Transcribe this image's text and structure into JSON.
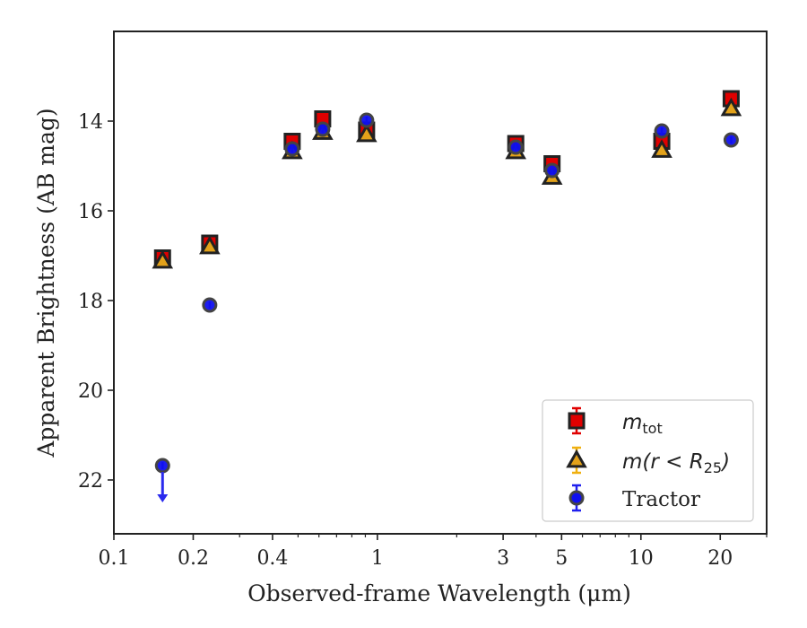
{
  "chart_data": {
    "type": "scatter",
    "title": "",
    "xlabel": "Observed-frame Wavelength (μm)",
    "ylabel": "Apparent Brightness (AB mag)",
    "x_scale": "log",
    "xlim": [
      0.1,
      30
    ],
    "ylim": [
      23.2,
      12.0
    ],
    "y_inverted": true,
    "grid": false,
    "legend_position": "lower-right",
    "x_ticks": [
      {
        "value": 0.1,
        "label": "0.1"
      },
      {
        "value": 0.2,
        "label": "0.2"
      },
      {
        "value": 0.4,
        "label": "0.4"
      },
      {
        "value": 1,
        "label": "1"
      },
      {
        "value": 3,
        "label": "3"
      },
      {
        "value": 5,
        "label": "5"
      },
      {
        "value": 10,
        "label": "10"
      },
      {
        "value": 20,
        "label": "20"
      }
    ],
    "y_ticks": [
      {
        "value": 14,
        "label": "14"
      },
      {
        "value": 16,
        "label": "16"
      },
      {
        "value": 18,
        "label": "18"
      },
      {
        "value": 20,
        "label": "20"
      },
      {
        "value": 22,
        "label": "22"
      }
    ],
    "series": [
      {
        "name": "m_tot",
        "legend_main": "m",
        "legend_sub": "tot",
        "marker": "square",
        "color": "#e00000",
        "error_color": "#e00000",
        "x": [
          0.153,
          0.231,
          0.475,
          0.62,
          0.91,
          3.35,
          4.6,
          12.0,
          22.0
        ],
        "y": [
          17.05,
          16.72,
          14.45,
          13.95,
          14.2,
          14.5,
          14.95,
          14.45,
          13.5
        ]
      },
      {
        "name": "m(r < R_25)",
        "legend_main": "m(r < R",
        "legend_sub": "25",
        "legend_close": ")",
        "marker": "triangle",
        "color": "#e3a21a",
        "error_color": "#f0b010",
        "x": [
          0.153,
          0.231,
          0.475,
          0.62,
          0.91,
          3.35,
          4.6,
          12.0,
          22.0
        ],
        "y": [
          17.12,
          16.8,
          14.68,
          14.25,
          14.3,
          14.68,
          15.25,
          14.65,
          13.72
        ]
      },
      {
        "name": "Tractor",
        "marker": "circle",
        "color": "#1010ee",
        "error_color": "#2020ee",
        "x": [
          0.153,
          0.231,
          0.475,
          0.62,
          0.91,
          3.35,
          4.6,
          12.0,
          22.0
        ],
        "y": [
          21.68,
          18.1,
          14.62,
          14.18,
          13.98,
          14.58,
          15.1,
          14.22,
          14.42
        ],
        "upper_limit": [
          true,
          false,
          false,
          false,
          false,
          false,
          false,
          false,
          false
        ]
      }
    ]
  }
}
